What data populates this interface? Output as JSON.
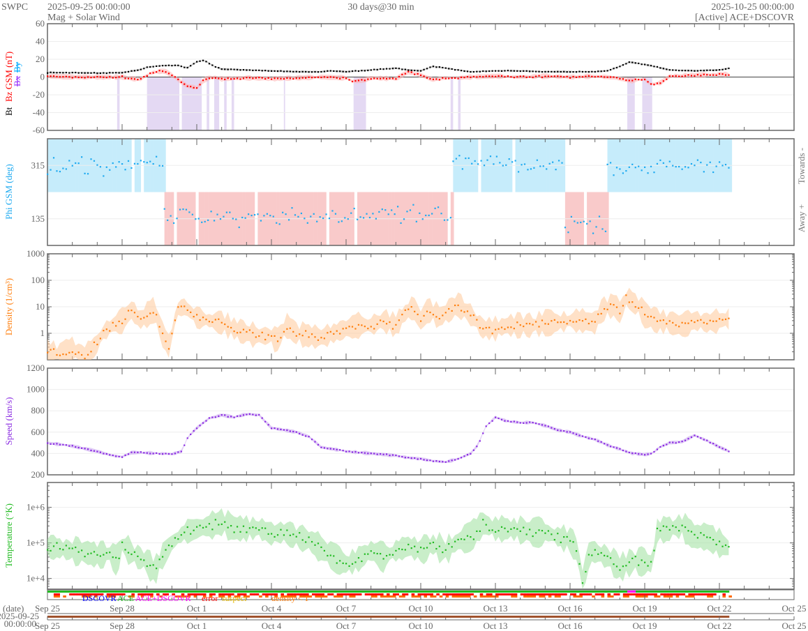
{
  "header": {
    "brand": "SWPC",
    "start_time": "2025-09-25 00:00:00",
    "subtitle": "Mag + Solar Wind",
    "span": "30 days@30 min",
    "end_time": "2025-10-25 00:00:00",
    "source": "[Active] ACE+DSCOVR"
  },
  "colors": {
    "bt": "#000000",
    "bz": "#ff0000",
    "bx": "#9933ff",
    "by": "#00aaff",
    "phi": "#1eaaf0",
    "towards": "#c6ecfb",
    "away": "#f9caca",
    "density": "#ff7f0e",
    "speed": "#8a2be2",
    "temperature": "#22bb22",
    "southward": "#ddd0f0"
  },
  "x_axis": {
    "days": 30,
    "labels": [
      "Sep 25",
      "Sep 28",
      "Oct 1",
      "Oct 4",
      "Oct 7",
      "Oct 10",
      "Oct 13",
      "Oct 16",
      "Oct 19",
      "Oct 22",
      "Oct 25"
    ],
    "label_day_offsets": [
      0,
      3,
      6,
      9,
      12,
      15,
      18,
      21,
      24,
      27,
      30
    ],
    "date_label": "(date)",
    "date_start_line1": "2025-09-25",
    "date_start_line2": "00:00:00"
  },
  "legend": {
    "dscovr": "DSCOVR",
    "ace": "ACE",
    "ace_dscovr": "ACE+DSCOVR",
    "error": "error",
    "suspect": "suspect",
    "density_lt_1": "density < 1"
  },
  "chart_data": [
    {
      "id": "mag",
      "type": "line",
      "ylabel": {
        "bt": "Bt",
        "bz": "Bz GSM (nT)",
        "bx": "Bx",
        "by": "By"
      },
      "ylim": [
        -60,
        60
      ],
      "yticks": [
        "60",
        "40",
        "20",
        "0",
        "-20",
        "-40",
        "-60"
      ],
      "ytick_values": [
        60,
        40,
        20,
        0,
        -20,
        -40,
        -60
      ],
      "series": [
        {
          "name": "Bt",
          "points": [
            [
              0,
              5
            ],
            [
              1,
              5
            ],
            [
              2,
              4.5
            ],
            [
              3,
              5
            ],
            [
              3.7,
              8
            ],
            [
              4,
              11
            ],
            [
              4.6,
              13
            ],
            [
              5.3,
              13
            ],
            [
              5.6,
              10
            ],
            [
              6,
              17
            ],
            [
              6.3,
              19
            ],
            [
              6.7,
              12
            ],
            [
              7,
              9
            ],
            [
              8,
              8
            ],
            [
              9,
              7
            ],
            [
              10,
              6
            ],
            [
              11,
              6
            ],
            [
              11.4,
              7
            ],
            [
              12,
              6
            ],
            [
              13,
              8
            ],
            [
              14,
              10
            ],
            [
              14.5,
              8
            ],
            [
              15,
              7
            ],
            [
              15.5,
              12
            ],
            [
              16,
              10
            ],
            [
              16.5,
              8
            ],
            [
              17,
              6
            ],
            [
              18,
              7
            ],
            [
              19,
              7
            ],
            [
              20,
              6
            ],
            [
              21,
              6
            ],
            [
              22,
              6
            ],
            [
              22.5,
              7
            ],
            [
              23,
              12
            ],
            [
              23.4,
              17
            ],
            [
              23.8,
              15
            ],
            [
              24.2,
              13
            ],
            [
              25,
              8
            ],
            [
              26,
              7
            ],
            [
              27,
              8
            ],
            [
              27.4,
              10
            ]
          ]
        },
        {
          "name": "Bz GSM",
          "points": [
            [
              0,
              1
            ],
            [
              1,
              0
            ],
            [
              2,
              0
            ],
            [
              3,
              0
            ],
            [
              3.7,
              -3
            ],
            [
              4.2,
              5
            ],
            [
              4.7,
              7
            ],
            [
              5,
              2
            ],
            [
              5.3,
              -4
            ],
            [
              5.6,
              -10
            ],
            [
              6,
              -12
            ],
            [
              6.3,
              -3
            ],
            [
              6.6,
              0
            ],
            [
              7,
              -2
            ],
            [
              8,
              -1
            ],
            [
              9,
              -2
            ],
            [
              10,
              -1
            ],
            [
              11,
              0
            ],
            [
              12,
              -1
            ],
            [
              12.3,
              -5
            ],
            [
              12.8,
              -3
            ],
            [
              13,
              -1
            ],
            [
              14,
              -2
            ],
            [
              14.5,
              6
            ],
            [
              15,
              2
            ],
            [
              15.5,
              -3
            ],
            [
              16,
              -1
            ],
            [
              16.5,
              -1
            ],
            [
              17,
              0
            ],
            [
              18,
              1
            ],
            [
              19,
              0
            ],
            [
              20,
              1
            ],
            [
              21,
              0
            ],
            [
              22,
              1
            ],
            [
              22.5,
              0
            ],
            [
              23,
              -2
            ],
            [
              23.5,
              -4
            ],
            [
              24,
              -2
            ],
            [
              24.2,
              -8
            ],
            [
              24.6,
              -7
            ],
            [
              25,
              1
            ],
            [
              26,
              2
            ],
            [
              27,
              3
            ],
            [
              27.4,
              3
            ]
          ]
        }
      ],
      "southward_bz_intervals": [
        [
          2.8,
          2.9
        ],
        [
          4.0,
          5.3
        ],
        [
          5.4,
          6.2
        ],
        [
          6.4,
          6.5
        ],
        [
          6.7,
          6.9
        ],
        [
          7.1,
          7.2
        ],
        [
          7.4,
          7.5
        ],
        [
          9.5,
          9.55
        ],
        [
          12.3,
          12.8
        ],
        [
          16.2,
          16.3
        ],
        [
          16.5,
          16.6
        ],
        [
          23.3,
          23.6
        ],
        [
          23.9,
          24.3
        ]
      ]
    },
    {
      "id": "phi",
      "type": "scatter",
      "ylabel": "Phi GSM (deg)",
      "right_labels": {
        "towards": "Towards -",
        "away": "Away +"
      },
      "ylim": [
        45,
        405
      ],
      "yticks": [
        "315",
        "135"
      ],
      "ytick_values": [
        315,
        135
      ],
      "sectors": [
        {
          "dir": "towards",
          "from": 0,
          "to": 4.7,
          "phi": 318
        },
        {
          "dir": "away",
          "from": 4.7,
          "to": 16.3,
          "phi": 145
        },
        {
          "dir": "towards",
          "from": 16.3,
          "to": 20.8,
          "phi": 320
        },
        {
          "dir": "away",
          "from": 20.8,
          "to": 22.5,
          "phi": 120
        },
        {
          "dir": "towards",
          "from": 22.5,
          "to": 27.4,
          "phi": 312
        }
      ]
    },
    {
      "id": "density",
      "type": "line",
      "scale": "log",
      "ylabel": "Density (1/cm³)",
      "ylim": [
        0.1,
        1000
      ],
      "yticks": [
        "1000",
        "100",
        "10",
        "1"
      ],
      "ytick_values": [
        1000,
        100,
        10,
        1
      ],
      "points": [
        [
          0,
          0.2
        ],
        [
          0.5,
          0.15
        ],
        [
          1,
          0.25
        ],
        [
          1.5,
          0.12
        ],
        [
          2,
          0.4
        ],
        [
          2.2,
          1
        ],
        [
          2.6,
          2
        ],
        [
          3,
          3
        ],
        [
          3.4,
          8
        ],
        [
          3.7,
          3
        ],
        [
          4,
          5
        ],
        [
          4.3,
          8
        ],
        [
          4.6,
          1
        ],
        [
          4.9,
          0.3
        ],
        [
          5.2,
          8
        ],
        [
          5.5,
          10
        ],
        [
          6,
          4
        ],
        [
          6.5,
          3
        ],
        [
          7,
          2.5
        ],
        [
          7.5,
          1.5
        ],
        [
          8,
          1
        ],
        [
          8.5,
          0.8
        ],
        [
          9,
          0.8
        ],
        [
          9.2,
          0.5
        ],
        [
          9.6,
          2
        ],
        [
          10,
          1
        ],
        [
          10.5,
          0.8
        ],
        [
          11,
          0.7
        ],
        [
          11.5,
          1
        ],
        [
          12,
          1.5
        ],
        [
          12.5,
          2
        ],
        [
          13,
          2
        ],
        [
          13.5,
          3
        ],
        [
          14,
          2
        ],
        [
          14.3,
          5
        ],
        [
          14.7,
          10
        ],
        [
          15,
          3
        ],
        [
          15.3,
          8
        ],
        [
          15.8,
          4
        ],
        [
          16,
          6
        ],
        [
          16.5,
          12
        ],
        [
          17,
          5
        ],
        [
          17.5,
          1.5
        ],
        [
          18,
          1.5
        ],
        [
          18.5,
          2
        ],
        [
          19,
          2
        ],
        [
          19.5,
          2
        ],
        [
          20,
          2.5
        ],
        [
          20.5,
          2.5
        ],
        [
          21,
          3
        ],
        [
          21.5,
          3
        ],
        [
          22,
          2.5
        ],
        [
          22.3,
          8
        ],
        [
          22.8,
          12
        ],
        [
          23,
          6
        ],
        [
          23.3,
          25
        ],
        [
          23.5,
          15
        ],
        [
          23.8,
          10
        ],
        [
          24,
          5
        ],
        [
          24.5,
          3
        ],
        [
          25,
          2.5
        ],
        [
          25.5,
          2
        ],
        [
          26,
          3
        ],
        [
          26.5,
          2.5
        ],
        [
          27,
          3
        ],
        [
          27.4,
          3.5
        ]
      ]
    },
    {
      "id": "speed",
      "type": "line",
      "ylabel": "Speed (km/s)",
      "ylim": [
        200,
        1200
      ],
      "yticks": [
        "1200",
        "1000",
        "800",
        "600",
        "400",
        "200"
      ],
      "ytick_values": [
        1200,
        1000,
        800,
        600,
        400,
        200
      ],
      "points": [
        [
          0,
          500
        ],
        [
          1,
          470
        ],
        [
          2,
          420
        ],
        [
          2.6,
          380
        ],
        [
          3,
          370
        ],
        [
          3.4,
          410
        ],
        [
          4,
          405
        ],
        [
          5,
          395
        ],
        [
          5.4,
          420
        ],
        [
          5.6,
          540
        ],
        [
          6,
          640
        ],
        [
          6.5,
          730
        ],
        [
          7,
          760
        ],
        [
          7.5,
          740
        ],
        [
          8,
          770
        ],
        [
          8.5,
          760
        ],
        [
          9,
          640
        ],
        [
          9.5,
          620
        ],
        [
          10,
          600
        ],
        [
          10.5,
          560
        ],
        [
          11,
          460
        ],
        [
          11.5,
          440
        ],
        [
          12,
          420
        ],
        [
          12.5,
          410
        ],
        [
          13,
          400
        ],
        [
          13.5,
          390
        ],
        [
          14,
          380
        ],
        [
          14.5,
          360
        ],
        [
          15,
          350
        ],
        [
          15.5,
          330
        ],
        [
          16,
          320
        ],
        [
          16.5,
          350
        ],
        [
          17,
          400
        ],
        [
          17.3,
          480
        ],
        [
          17.6,
          650
        ],
        [
          18,
          740
        ],
        [
          18.5,
          700
        ],
        [
          19,
          690
        ],
        [
          19.5,
          690
        ],
        [
          20,
          660
        ],
        [
          20.5,
          620
        ],
        [
          21,
          600
        ],
        [
          21.5,
          560
        ],
        [
          22,
          530
        ],
        [
          22.5,
          480
        ],
        [
          23,
          440
        ],
        [
          23.5,
          400
        ],
        [
          24,
          390
        ],
        [
          24.3,
          400
        ],
        [
          24.6,
          460
        ],
        [
          25,
          500
        ],
        [
          25.5,
          510
        ],
        [
          26,
          570
        ],
        [
          26.5,
          520
        ],
        [
          27,
          460
        ],
        [
          27.4,
          420
        ]
      ]
    },
    {
      "id": "temperature",
      "type": "line",
      "scale": "log",
      "ylabel": "Temperature (°K)",
      "ylim": [
        5000,
        5000000
      ],
      "yticks": [
        "1e+6",
        "1e+5",
        "1e+4"
      ],
      "ytick_values": [
        1000000,
        100000,
        10000
      ],
      "points": [
        [
          0,
          80000
        ],
        [
          0.5,
          70000
        ],
        [
          1,
          60000
        ],
        [
          1.5,
          55000
        ],
        [
          2,
          45000
        ],
        [
          2.5,
          50000
        ],
        [
          2.8,
          30000
        ],
        [
          3,
          90000
        ],
        [
          3.5,
          45000
        ],
        [
          4,
          30000
        ],
        [
          4.3,
          15000
        ],
        [
          4.6,
          40000
        ],
        [
          5,
          100000
        ],
        [
          5.5,
          200000
        ],
        [
          6,
          250000
        ],
        [
          6.5,
          300000
        ],
        [
          7,
          380000
        ],
        [
          7.5,
          260000
        ],
        [
          8,
          250000
        ],
        [
          8.5,
          260000
        ],
        [
          9,
          180000
        ],
        [
          9.5,
          200000
        ],
        [
          10,
          150000
        ],
        [
          10.5,
          120000
        ],
        [
          11,
          70000
        ],
        [
          11.5,
          40000
        ],
        [
          12,
          25000
        ],
        [
          12.5,
          35000
        ],
        [
          13,
          60000
        ],
        [
          13.5,
          40000
        ],
        [
          14,
          60000
        ],
        [
          14.5,
          80000
        ],
        [
          15,
          60000
        ],
        [
          15.5,
          90000
        ],
        [
          16,
          60000
        ],
        [
          16.5,
          110000
        ],
        [
          17,
          150000
        ],
        [
          17.5,
          350000
        ],
        [
          18,
          250000
        ],
        [
          18.5,
          250000
        ],
        [
          19,
          230000
        ],
        [
          19.5,
          200000
        ],
        [
          20,
          200000
        ],
        [
          20.5,
          150000
        ],
        [
          21,
          120000
        ],
        [
          21.3,
          60000
        ],
        [
          21.5,
          8000
        ],
        [
          21.8,
          60000
        ],
        [
          22,
          55000
        ],
        [
          22.5,
          40000
        ],
        [
          23,
          20000
        ],
        [
          23.5,
          30000
        ],
        [
          24,
          30000
        ],
        [
          24.3,
          25000
        ],
        [
          24.5,
          220000
        ],
        [
          25,
          250000
        ],
        [
          25.5,
          300000
        ],
        [
          26,
          150000
        ],
        [
          26.5,
          150000
        ],
        [
          27,
          100000
        ],
        [
          27.4,
          70000
        ]
      ]
    }
  ]
}
